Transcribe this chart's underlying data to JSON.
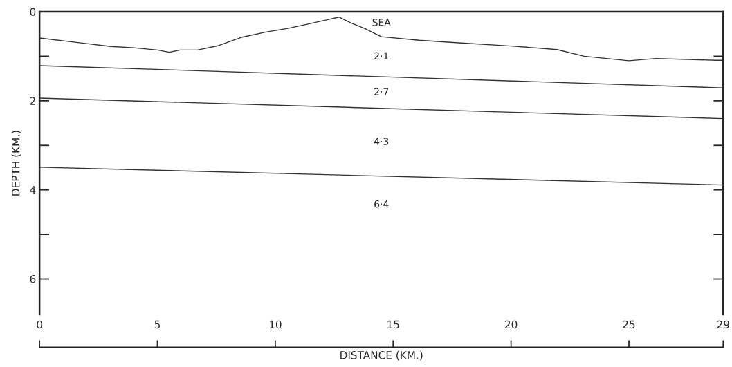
{
  "chart_data": {
    "type": "line",
    "xlabel": "DISTANCE (KM.)",
    "ylabel": "DEPTH (KM.)",
    "xlim": [
      0,
      29
    ],
    "xticks": [
      0,
      5,
      10,
      15,
      20,
      25,
      29
    ],
    "ylim": [
      6.8,
      0
    ],
    "yticks": [
      0,
      {
        "value": 1,
        "label": null
      },
      2,
      {
        "value": 3,
        "label": null
      },
      4,
      {
        "value": 5,
        "label": null
      },
      6
    ],
    "grid": false,
    "legend": false,
    "marker": "none",
    "line_style": "solid",
    "series": [
      {
        "color": "#333333",
        "x": [
          0,
          1.76,
          3.02,
          4.0,
          5.0,
          5.5,
          5.96,
          6.7,
          7.6,
          8.6,
          9.57,
          10.57,
          11.45,
          12.2,
          12.7,
          13.2,
          13.8,
          14.5,
          16.1,
          17.55,
          20.0,
          21.95,
          23.1,
          25.0,
          26.15,
          28.7,
          29
        ],
        "values": [
          0.59,
          0.7,
          0.78,
          0.81,
          0.86,
          0.91,
          0.86,
          0.86,
          0.76,
          0.57,
          0.46,
          0.37,
          0.27,
          0.18,
          0.12,
          0.25,
          0.38,
          0.56,
          0.64,
          0.69,
          0.77,
          0.85,
          1.0,
          1.1,
          1.05,
          1.09,
          1.09
        ]
      },
      {
        "color": "#333333",
        "x": [
          0,
          29
        ],
        "values": [
          1.21,
          1.71
        ]
      },
      {
        "color": "#333333",
        "x": [
          0,
          29
        ],
        "values": [
          1.94,
          2.4
        ]
      },
      {
        "color": "#333333",
        "x": [
          0,
          29
        ],
        "values": [
          3.49,
          3.89
        ]
      }
    ],
    "annotations": [
      "SEA",
      "2·1",
      "2·7",
      "4·3",
      "6·4"
    ]
  }
}
